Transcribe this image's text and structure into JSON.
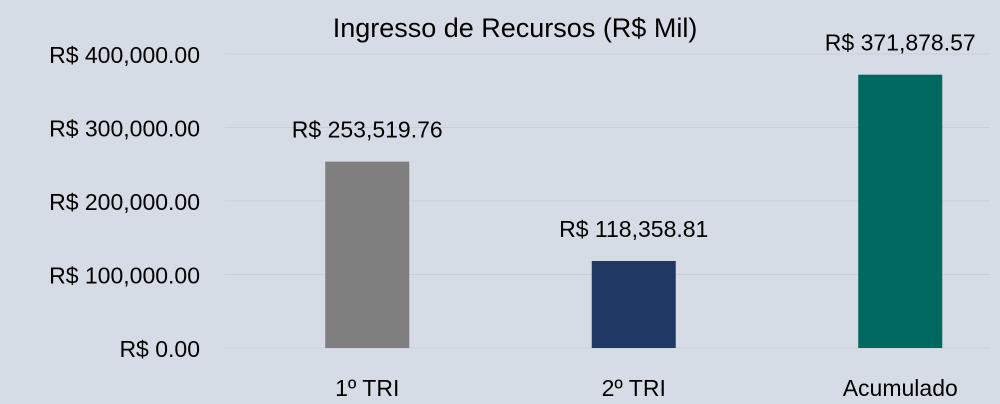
{
  "chart_data": {
    "type": "bar",
    "title": "Ingresso de Recursos (R$ Mil)",
    "categories": [
      "1º TRI",
      "2º TRI",
      "Acumulado"
    ],
    "values": [
      253519.76,
      118358.81,
      371878.57
    ],
    "value_labels": [
      "R$ 253,519.76",
      "R$ 118,358.81",
      "R$ 371,878.57"
    ],
    "colors": [
      "#7f7f7f",
      "#203864",
      "#00695f"
    ],
    "ylim": [
      0,
      400000
    ],
    "yticks": [
      {
        "value": 0,
        "label": "R$ 0.00"
      },
      {
        "value": 100000,
        "label": "R$ 100,000.00"
      },
      {
        "value": 200000,
        "label": "R$ 200,000.00"
      },
      {
        "value": 300000,
        "label": "R$ 300,000.00"
      },
      {
        "value": 400000,
        "label": "R$ 400,000.00"
      }
    ],
    "grid": true
  }
}
